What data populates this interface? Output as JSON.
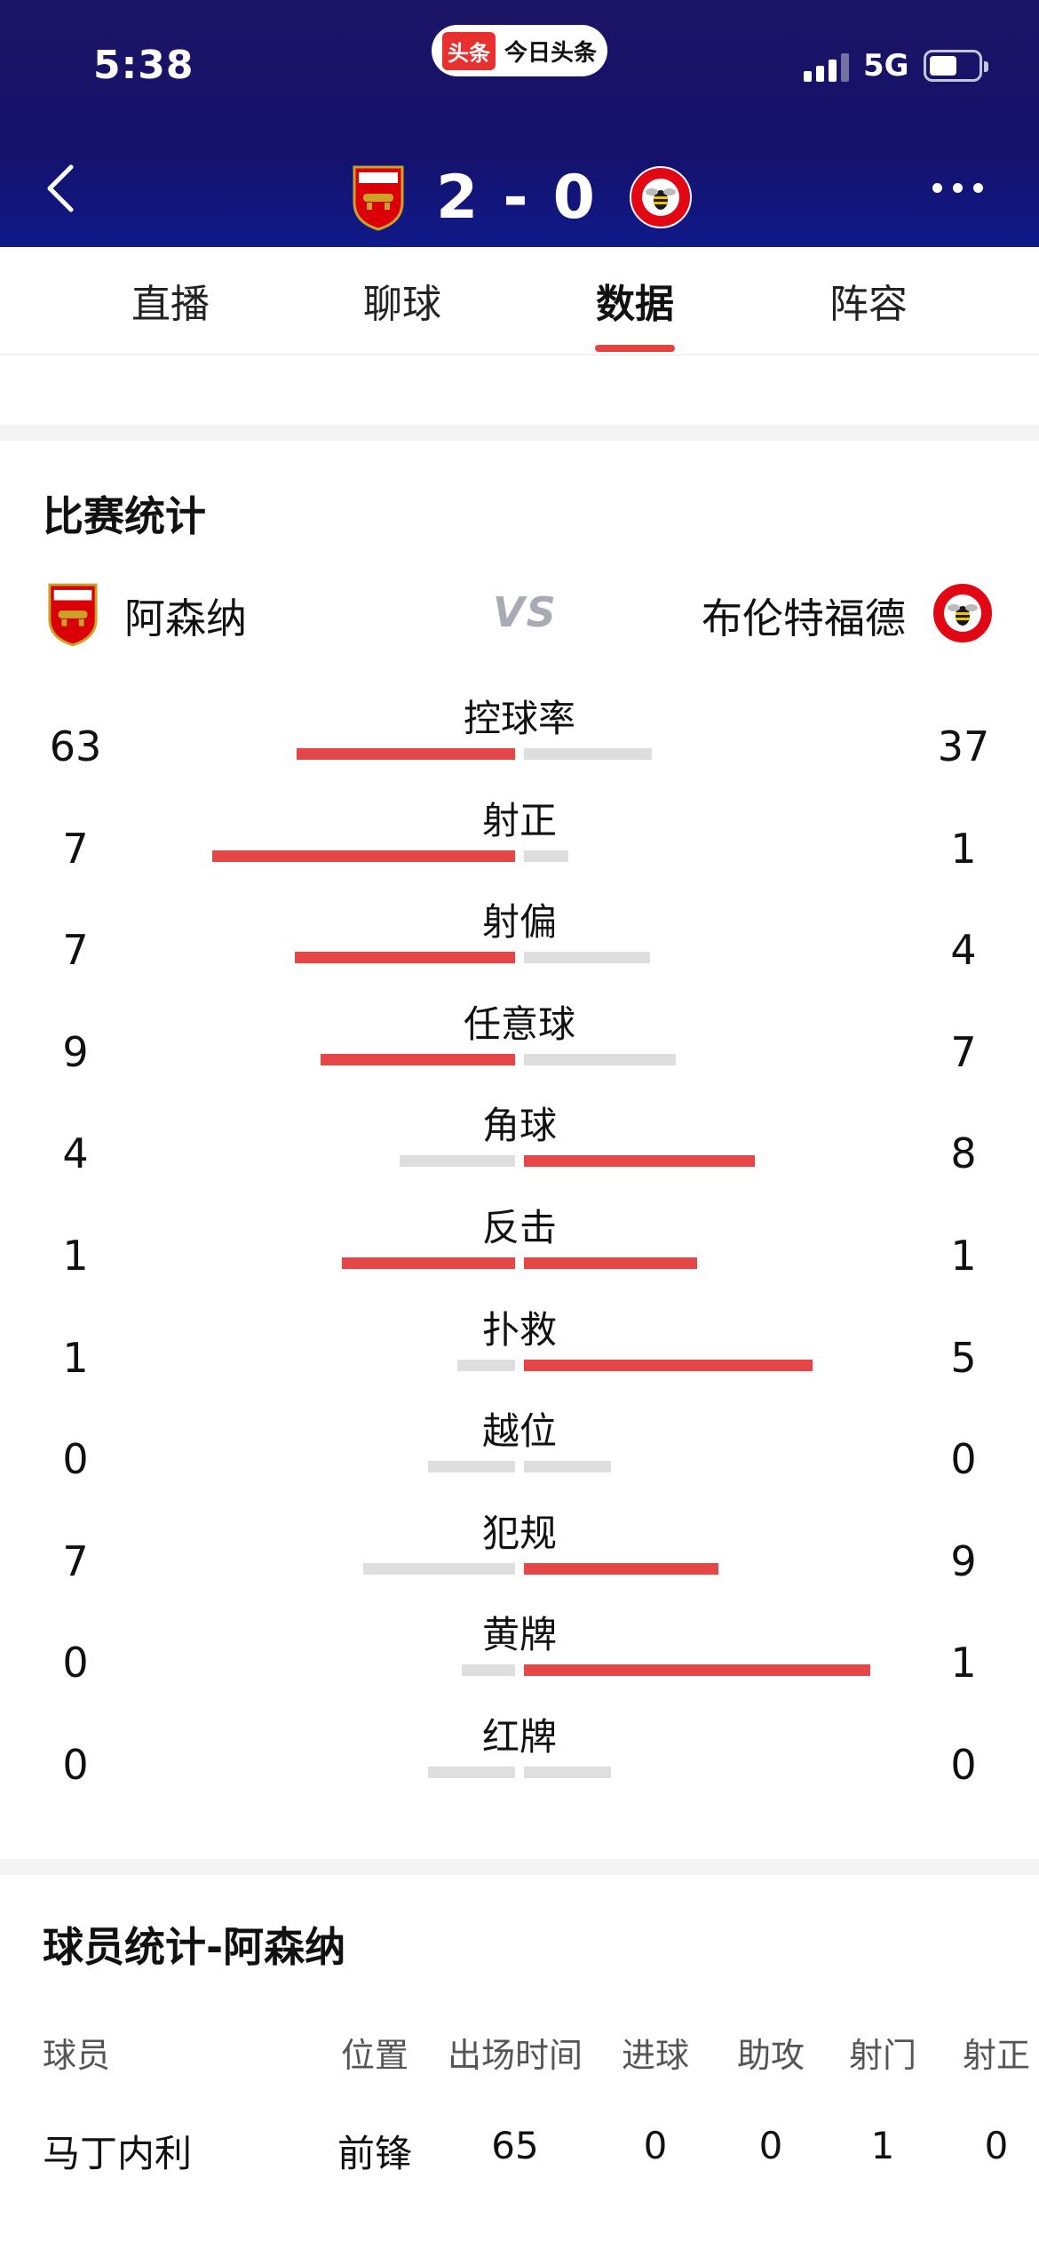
{
  "status": {
    "time": "5:38",
    "network": "5G"
  },
  "app": {
    "logo_text": "头条",
    "name": "今日头条"
  },
  "match": {
    "home_score": "2",
    "separator": "-",
    "away_score": "0"
  },
  "tabs": [
    {
      "label": "直播"
    },
    {
      "label": "聊球"
    },
    {
      "label": "数据"
    },
    {
      "label": "阵容"
    }
  ],
  "active_tab": "数据",
  "stats_section": {
    "title": "比赛统计",
    "home_team": "阿森纳",
    "vs": "VS",
    "away_team": "布伦特福德",
    "rows": [
      {
        "label": "控球率",
        "home": "63",
        "away": "37"
      },
      {
        "label": "射正",
        "home": "7",
        "away": "1"
      },
      {
        "label": "射偏",
        "home": "7",
        "away": "4"
      },
      {
        "label": "任意球",
        "home": "9",
        "away": "7"
      },
      {
        "label": "角球",
        "home": "4",
        "away": "8"
      },
      {
        "label": "反击",
        "home": "1",
        "away": "1"
      },
      {
        "label": "扑救",
        "home": "1",
        "away": "5"
      },
      {
        "label": "越位",
        "home": "0",
        "away": "0"
      },
      {
        "label": "犯规",
        "home": "7",
        "away": "9"
      },
      {
        "label": "黄牌",
        "home": "0",
        "away": "1"
      },
      {
        "label": "红牌",
        "home": "0",
        "away": "0"
      }
    ]
  },
  "player_section": {
    "title": "球员统计-阿森纳",
    "columns": [
      "球员",
      "位置",
      "出场时间",
      "进球",
      "助攻",
      "射门",
      "射正"
    ],
    "rows": [
      [
        "马丁内利",
        "前锋",
        "65",
        "0",
        "0",
        "1",
        "0"
      ]
    ]
  },
  "colors": {
    "header_bg": "#14116a",
    "accent_red": "#e64646",
    "bar_grey": "#dedede",
    "arsenal_red": "#db0007",
    "brentford_red": "#e30613"
  },
  "icons": {
    "back": "chevron-left-icon",
    "more": "more-dots-icon",
    "home_crest": "arsenal-crest-icon",
    "away_crest": "brentford-crest-icon"
  }
}
